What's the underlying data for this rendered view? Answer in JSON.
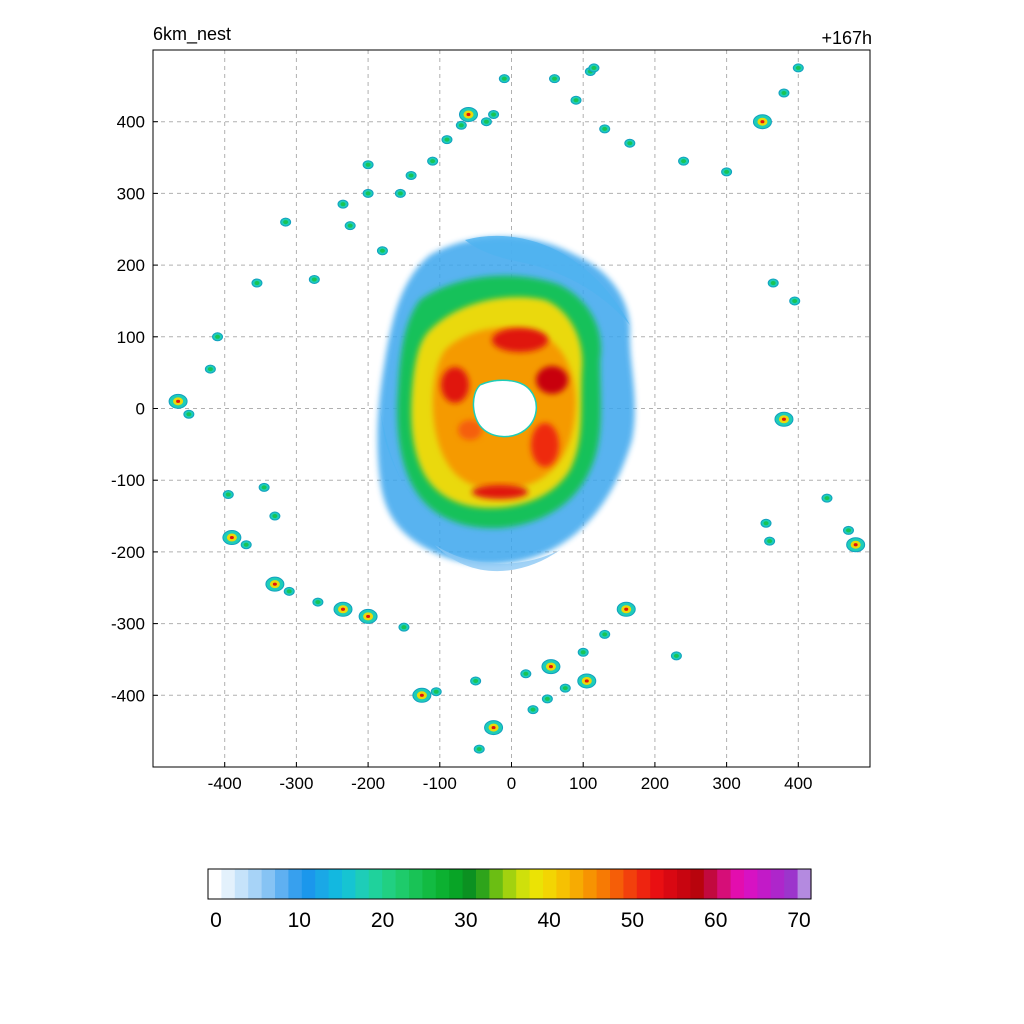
{
  "chart_data": {
    "type": "heatmap",
    "title_left": "6km_nest",
    "title_right": "+167h",
    "xlabel": "",
    "ylabel": "",
    "xlim": [
      -500,
      500
    ],
    "ylim": [
      -500,
      500
    ],
    "grid": true,
    "x_ticks": [
      -400,
      -300,
      -200,
      -100,
      0,
      100,
      200,
      300,
      400
    ],
    "x_tick_labels": [
      "-400",
      "-300",
      "-200",
      "-100",
      "0",
      "100",
      "200",
      "300",
      "400"
    ],
    "y_ticks": [
      400,
      300,
      200,
      100,
      0,
      -100,
      -200,
      -300,
      -400
    ],
    "y_tick_labels": [
      "400",
      "300",
      "200",
      "100",
      "0",
      "-100",
      "-200",
      "-300",
      "-400"
    ],
    "colorbar": {
      "min": 0,
      "max": 70,
      "tick_values": [
        0,
        10,
        20,
        30,
        40,
        50,
        60,
        70
      ],
      "tick_labels": [
        "0",
        "10",
        "20",
        "30",
        "40",
        "50",
        "60",
        "70"
      ],
      "colors": [
        "#ffffff",
        "#e3f1fc",
        "#c6e3fa",
        "#a7d3f7",
        "#86c3f4",
        "#5fb0f1",
        "#37a0ee",
        "#1b97ec",
        "#1aa8e6",
        "#13b8e0",
        "#16c4d2",
        "#1ecdb8",
        "#1fd29c",
        "#21d082",
        "#1ecb6b",
        "#19c356",
        "#12bb42",
        "#0cb131",
        "#08a426",
        "#0b9121",
        "#2ea41b",
        "#6bbe13",
        "#a2d20f",
        "#cfe00b",
        "#ebe305",
        "#f3d503",
        "#f6c102",
        "#f7ab02",
        "#f79302",
        "#f77a04",
        "#f55e08",
        "#f2400c",
        "#ee2410",
        "#e90f12",
        "#d90812",
        "#c80510",
        "#b8040d",
        "#c2093e",
        "#d60e78",
        "#e30dae",
        "#d712c3",
        "#c21ac8",
        "#ae26cb",
        "#9c35cc",
        "#b48ae0"
      ]
    },
    "field_description_centers": {
      "center": [
        0,
        0
      ],
      "eye_radius": 35
    },
    "outer_cells": [
      [
        -465,
        10
      ],
      [
        -450,
        -8
      ],
      [
        -420,
        55
      ],
      [
        -410,
        100
      ],
      [
        -395,
        -120
      ],
      [
        -390,
        -180
      ],
      [
        -370,
        -190
      ],
      [
        -355,
        175
      ],
      [
        -345,
        -110
      ],
      [
        -330,
        -150
      ],
      [
        -330,
        -245
      ],
      [
        -315,
        260
      ],
      [
        -310,
        -255
      ],
      [
        -275,
        180
      ],
      [
        -270,
        -270
      ],
      [
        -235,
        -280
      ],
      [
        -235,
        285
      ],
      [
        -225,
        255
      ],
      [
        -200,
        340
      ],
      [
        -200,
        300
      ],
      [
        -200,
        -290
      ],
      [
        -180,
        220
      ],
      [
        -155,
        300
      ],
      [
        -150,
        -305
      ],
      [
        -140,
        325
      ],
      [
        -125,
        -400
      ],
      [
        -110,
        345
      ],
      [
        -105,
        -395
      ],
      [
        -90,
        375
      ],
      [
        -70,
        395
      ],
      [
        -60,
        410
      ],
      [
        -50,
        -380
      ],
      [
        -45,
        -475
      ],
      [
        -35,
        400
      ],
      [
        -25,
        410
      ],
      [
        -25,
        -445
      ],
      [
        -10,
        460
      ],
      [
        20,
        -370
      ],
      [
        30,
        -420
      ],
      [
        50,
        -405
      ],
      [
        55,
        -360
      ],
      [
        60,
        460
      ],
      [
        75,
        -390
      ],
      [
        90,
        430
      ],
      [
        100,
        -340
      ],
      [
        105,
        -380
      ],
      [
        110,
        470
      ],
      [
        115,
        475
      ],
      [
        130,
        390
      ],
      [
        130,
        -315
      ],
      [
        160,
        -280
      ],
      [
        165,
        370
      ],
      [
        230,
        -345
      ],
      [
        240,
        345
      ],
      [
        300,
        330
      ],
      [
        350,
        400
      ],
      [
        355,
        -160
      ],
      [
        360,
        -185
      ],
      [
        365,
        175
      ],
      [
        380,
        440
      ],
      [
        380,
        -15
      ],
      [
        395,
        150
      ],
      [
        400,
        475
      ],
      [
        440,
        -125
      ],
      [
        470,
        -170
      ],
      [
        480,
        -190
      ]
    ]
  }
}
